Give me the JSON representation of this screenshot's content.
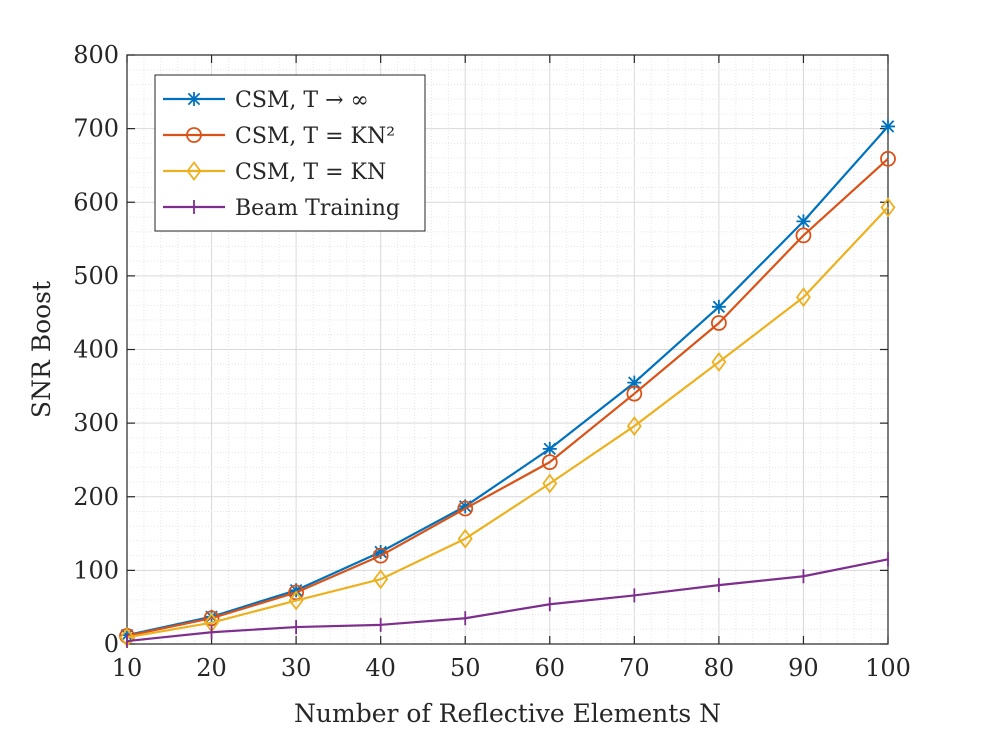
{
  "chart_data": {
    "type": "line",
    "title": "",
    "xlabel": "Number of Reflective Elements N",
    "ylabel": "SNR Boost",
    "xlim": [
      10,
      100
    ],
    "ylim": [
      0,
      800
    ],
    "x_ticks": [
      10,
      20,
      30,
      40,
      50,
      60,
      70,
      80,
      90,
      100
    ],
    "y_ticks": [
      0,
      100,
      200,
      300,
      400,
      500,
      600,
      700,
      800
    ],
    "grid": true,
    "minor_grid": true,
    "legend_location": "top-left",
    "x": [
      10,
      20,
      30,
      40,
      50,
      60,
      70,
      80,
      90,
      100
    ],
    "series": [
      {
        "name": "CSM, T → ∞",
        "color": "#0072BD",
        "marker": "asterisk",
        "values": [
          12,
          37,
          73,
          125,
          187,
          265,
          355,
          458,
          574,
          703
        ]
      },
      {
        "name": "CSM, T = KN²",
        "color": "#D95319",
        "marker": "circle",
        "values": [
          11,
          35,
          70,
          120,
          184,
          247,
          340,
          436,
          555,
          659
        ]
      },
      {
        "name": "CSM, T = KN",
        "color": "#EDB120",
        "marker": "diamond",
        "values": [
          9,
          29,
          59,
          88,
          143,
          218,
          296,
          383,
          471,
          593
        ]
      },
      {
        "name": "Beam Training",
        "color": "#7E2F8E",
        "marker": "plus",
        "values": [
          4,
          16,
          23,
          26,
          35,
          54,
          66,
          80,
          92,
          115
        ]
      }
    ]
  }
}
